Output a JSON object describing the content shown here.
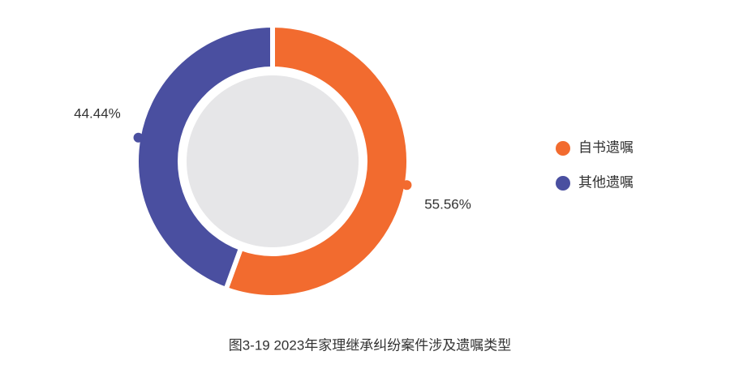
{
  "chart_data": {
    "type": "pie",
    "donut": true,
    "title": "图3-19  2023年家理继承纠纷案件涉及遗嘱类型",
    "categories": [
      "自书遗嘱",
      "其他遗嘱"
    ],
    "values": [
      55.56,
      44.44
    ],
    "value_labels": [
      "55.56%",
      "44.44%"
    ],
    "colors": [
      "#f26b2f",
      "#4a4fa0"
    ],
    "center_color": "#e6e6e8",
    "legend": "right"
  }
}
